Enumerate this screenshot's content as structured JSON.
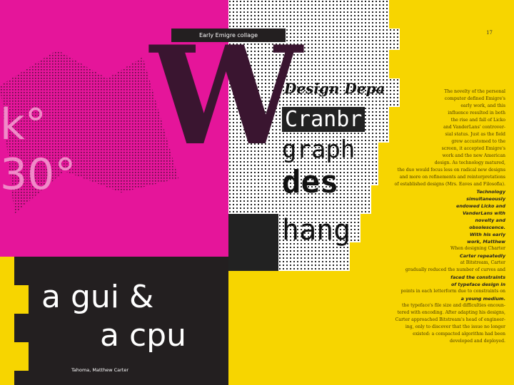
{
  "caption": "Early Emigre collage",
  "page_number": "17",
  "headline": [
    "a gui &",
    "a cpu"
  ],
  "credit": "Tahoma, Matthew Carter",
  "collage": {
    "big_letter": "W",
    "words": [
      "Design Depa",
      "Cranbr",
      "graph",
      "des",
      "hang"
    ],
    "fragments": [
      "k°",
      "30°"
    ]
  },
  "body": [
    {
      "text": "The novelty of the personal"
    },
    {
      "text": "computer defined Emigre's"
    },
    {
      "text": "early work, and this"
    },
    {
      "text": "influence resulted in both"
    },
    {
      "text": "the rise and fall of Licko"
    },
    {
      "text": "and VanderLans' controver-"
    },
    {
      "text": "sial status. Just as the field"
    },
    {
      "text": "grew accustomed to the"
    },
    {
      "text": "screen, it accepted Emigre's"
    },
    {
      "text": "work and the new American"
    },
    {
      "text": "design. As technology matured,"
    },
    {
      "text": "the duo would focus less on radical new designs"
    },
    {
      "text": "and more on refinements and reinterpretations"
    },
    {
      "text": "of established designs (Mrs. Eaves and Filosofia)."
    },
    {
      "text": "Technology",
      "emphasis": true
    },
    {
      "text": "simultaneously",
      "emphasis": true
    },
    {
      "text": "endowed Licko and",
      "emphasis": true
    },
    {
      "text": "VanderLans with",
      "emphasis": true
    },
    {
      "text": "novelty and",
      "emphasis": true
    },
    {
      "text": "obsolescence.",
      "emphasis": true
    },
    {
      "text": "With his early",
      "emphasis": true
    },
    {
      "text": "work, Matthew",
      "emphasis": true
    },
    {
      "text": "When designing Charter"
    },
    {
      "text": "Carter repeatedly",
      "emphasis": true
    },
    {
      "text": "at Bitstream, Carter"
    },
    {
      "text": "gradually reduced the number of curves and"
    },
    {
      "text": "faced the constraints",
      "emphasis": true
    },
    {
      "text": "of typeface design in",
      "emphasis": true
    },
    {
      "text": "points in each letterform due to constraints on"
    },
    {
      "text": "a young medium.",
      "emphasis": true
    },
    {
      "text": "the typeface's file size and difficulties encoun-"
    },
    {
      "text": "tered with encoding. After adapting his designs,"
    },
    {
      "text": "Carter approached Bitstream's head of engineer-"
    },
    {
      "text": "ing, only to discover that the issue no longer"
    },
    {
      "text": "existed: a compacted algorithm had been"
    },
    {
      "text": "developed and deployed."
    }
  ]
}
